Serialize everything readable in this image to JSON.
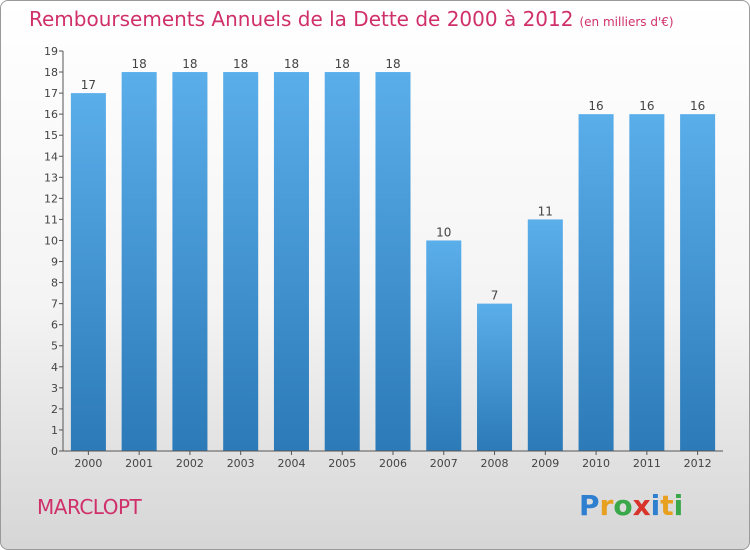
{
  "header": {
    "title": "Remboursements Annuels de la Dette de 2000 à 2012",
    "unit": "(en milliers d'€)"
  },
  "footer": {
    "commune": "MARCLOPT",
    "logo": {
      "text": "Proxiti",
      "letters": [
        {
          "ch": "P",
          "color": "#2f7fd0"
        },
        {
          "ch": "r",
          "color": "#e8a020"
        },
        {
          "ch": "o",
          "color": "#3aa84a"
        },
        {
          "ch": "x",
          "color": "#d8342c"
        },
        {
          "ch": "i",
          "color": "#2f7fd0"
        },
        {
          "ch": "t",
          "color": "#e8a020"
        },
        {
          "ch": "i",
          "color": "#3aa84a"
        }
      ]
    }
  },
  "chart_data": {
    "type": "bar",
    "title": "Remboursements Annuels de la Dette de 2000 à 2012",
    "subtitle": "(en milliers d'€)",
    "categories": [
      "2000",
      "2001",
      "2002",
      "2003",
      "2004",
      "2005",
      "2006",
      "2007",
      "2008",
      "2009",
      "2010",
      "2011",
      "2012"
    ],
    "values": [
      17,
      18,
      18,
      18,
      18,
      18,
      18,
      10,
      7,
      11,
      16,
      16,
      16
    ],
    "ylim": [
      0,
      19
    ],
    "yticks": [
      0,
      1,
      2,
      3,
      4,
      5,
      6,
      7,
      8,
      9,
      10,
      11,
      12,
      13,
      14,
      15,
      16,
      17,
      18,
      19
    ],
    "grid": false,
    "legend": "none",
    "colors": {
      "bar_top": "#5aaeea",
      "bar_bottom": "#2c7ab8",
      "axis": "#555555",
      "tick_label": "#444444"
    }
  }
}
